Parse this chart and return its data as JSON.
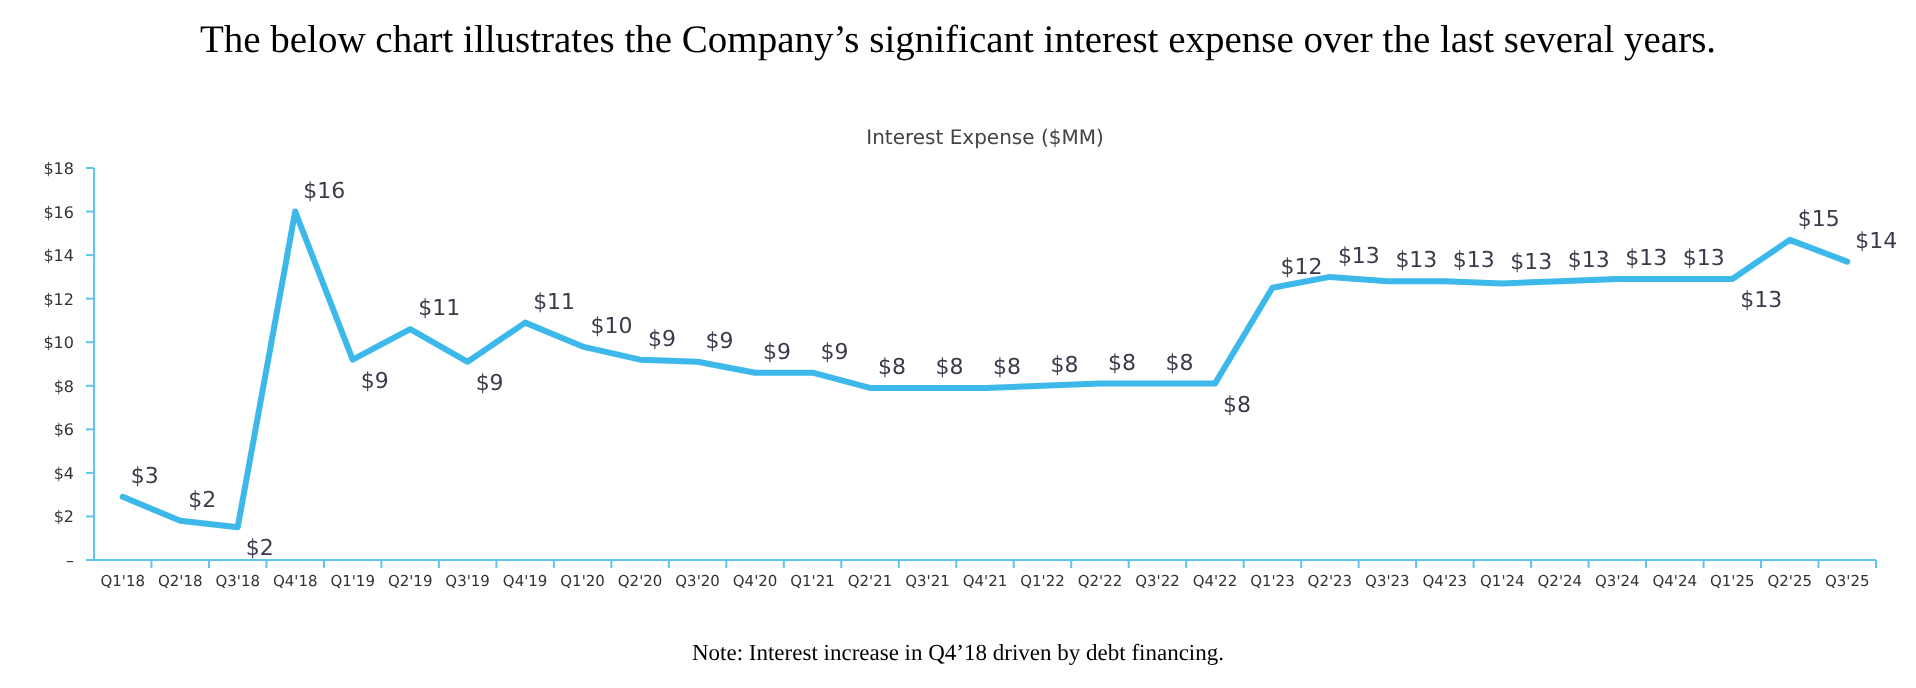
{
  "chart_data": {
    "type": "line",
    "title": "The below chart illustrates the Company’s significant interest expense over the last several years.",
    "subtitle": "Interest Expense ($MM)",
    "categories": [
      "Q1'18",
      "Q2'18",
      "Q3'18",
      "Q4'18",
      "Q1'19",
      "Q2'19",
      "Q3'19",
      "Q4'19",
      "Q1'20",
      "Q2'20",
      "Q3'20",
      "Q4'20",
      "Q1'21",
      "Q2'21",
      "Q3'21",
      "Q4'21",
      "Q1'22",
      "Q2'22",
      "Q3'22",
      "Q4'22",
      "Q1'23",
      "Q2'23",
      "Q3'23",
      "Q4'23",
      "Q1'24",
      "Q2'24",
      "Q3'24",
      "Q4'24",
      "Q1'25",
      "Q2'25",
      "Q3'25"
    ],
    "series": [
      {
        "color": "#3db8ea",
        "values": [
          2.9,
          1.8,
          1.5,
          16,
          9.2,
          10.6,
          9.1,
          10.9,
          9.8,
          9.2,
          9.1,
          8.6,
          8.6,
          7.9,
          7.9,
          7.9,
          8.0,
          8.1,
          8.1,
          8.1,
          12.5,
          13.0,
          12.8,
          12.8,
          12.7,
          12.8,
          12.9,
          12.9,
          12.9,
          14.7,
          13.7
        ],
        "value_labels": [
          "$3",
          "$2",
          "$2",
          "$16",
          "$9",
          "$11",
          "$9",
          "$11",
          "$10",
          "$9",
          "$9",
          "$9",
          "$9",
          "$8",
          "$8",
          "$8",
          "$8",
          "$8",
          "$8",
          "$8",
          "$12",
          "$13",
          "$13",
          "$13",
          "$13",
          "$13",
          "$13",
          "$13",
          "$13",
          "$15",
          "$14"
        ]
      }
    ],
    "ylim": [
      0,
      18
    ],
    "yticks": [
      {
        "value": 0,
        "label": "–"
      },
      {
        "value": 2,
        "label": "$2"
      },
      {
        "value": 4,
        "label": "$4"
      },
      {
        "value": 6,
        "label": "$6"
      },
      {
        "value": 8,
        "label": "$8"
      },
      {
        "value": 10,
        "label": "$10"
      },
      {
        "value": 12,
        "label": "$12"
      },
      {
        "value": 14,
        "label": "$14"
      },
      {
        "value": 16,
        "label": "$16"
      },
      {
        "value": 18,
        "label": "$18"
      }
    ],
    "grid": false,
    "marker": "none",
    "line_style": "solid",
    "annotations": [
      "Note: Interest increase in Q4’18 driven by debt financing."
    ]
  }
}
